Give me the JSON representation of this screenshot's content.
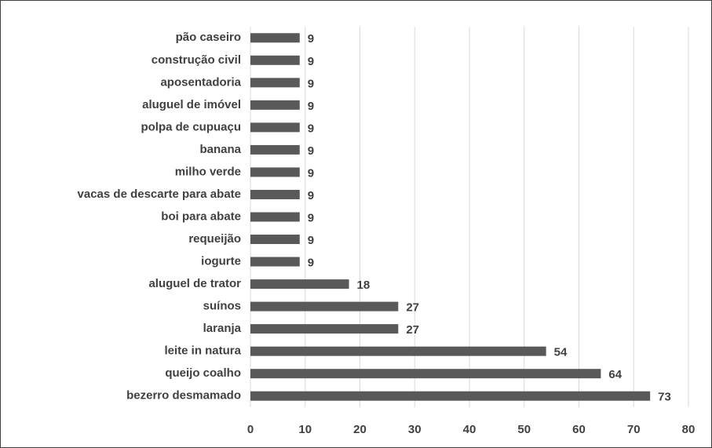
{
  "chart_data": {
    "type": "bar",
    "orientation": "horizontal",
    "categories": [
      "pão caseiro",
      "construção civil",
      "aposentadoria",
      "aluguel de imóvel",
      "polpa de cupuaçu",
      "banana",
      "milho verde",
      "vacas de descarte para abate",
      "boi para abate",
      "requeijão",
      "iogurte",
      "aluguel de trator",
      "suínos",
      "laranja",
      "leite in natura",
      "queijo coalho",
      "bezerro desmamado"
    ],
    "values": [
      9,
      9,
      9,
      9,
      9,
      9,
      9,
      9,
      9,
      9,
      9,
      18,
      27,
      27,
      54,
      64,
      73
    ],
    "color": "#595959",
    "xlim": [
      0,
      80
    ],
    "xticks": [
      0,
      10,
      20,
      30,
      40,
      50,
      60,
      70,
      80
    ],
    "grid": true
  }
}
